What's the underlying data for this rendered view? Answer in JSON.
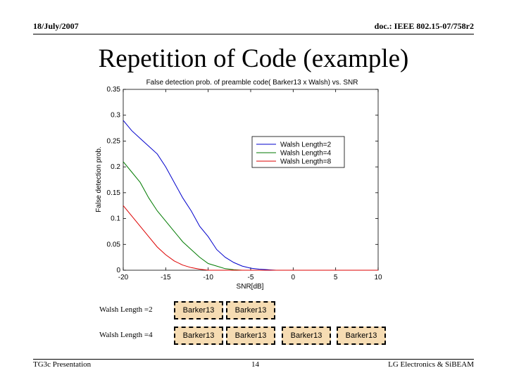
{
  "header": {
    "date": "18/July/2007",
    "doc": "doc.: IEEE 802.15-07/758r2"
  },
  "slide_title": "Repetition of Code (example)",
  "chart_data": {
    "type": "line",
    "title": "False detection prob. of preamble code( Barker13 x Walsh) vs. SNR",
    "xlabel": "SNR[dB]",
    "ylabel": "False detection prob.",
    "xlim": [
      -20,
      10
    ],
    "ylim": [
      0,
      0.35
    ],
    "xticks": [
      -20,
      -15,
      -10,
      -5,
      0,
      5,
      10
    ],
    "yticks": [
      0,
      0.05,
      0.1,
      0.15,
      0.2,
      0.25,
      0.3,
      0.35
    ],
    "grid": false,
    "legend_position": "upper-right",
    "series": [
      {
        "name": "Walsh Length=2",
        "color": "#0000cc",
        "x": [
          -20,
          -19,
          -18,
          -17,
          -16,
          -15,
          -14,
          -13,
          -12,
          -11,
          -10,
          -9,
          -8,
          -7,
          -6,
          -5,
          -4,
          -3,
          -2,
          0,
          5,
          10
        ],
        "y": [
          0.29,
          0.27,
          0.255,
          0.24,
          0.225,
          0.2,
          0.17,
          0.14,
          0.115,
          0.085,
          0.065,
          0.04,
          0.025,
          0.015,
          0.008,
          0.004,
          0.002,
          0.001,
          0.0,
          0.0,
          0.0,
          0.0
        ]
      },
      {
        "name": "Walsh Length=4",
        "color": "#007a00",
        "x": [
          -20,
          -19,
          -18,
          -17,
          -16,
          -15,
          -14,
          -13,
          -12,
          -11,
          -10,
          -9,
          -8,
          -7,
          -6,
          -5,
          0,
          5,
          10
        ],
        "y": [
          0.21,
          0.19,
          0.17,
          0.14,
          0.115,
          0.095,
          0.075,
          0.055,
          0.04,
          0.025,
          0.013,
          0.008,
          0.003,
          0.001,
          0.0,
          0.0,
          0.0,
          0.0,
          0.0
        ]
      },
      {
        "name": "Walsh Length=8",
        "color": "#dd0000",
        "x": [
          -20,
          -19,
          -18,
          -17,
          -16,
          -15,
          -14,
          -13,
          -12,
          -11,
          -10,
          -9,
          0,
          5,
          10
        ],
        "y": [
          0.125,
          0.105,
          0.085,
          0.065,
          0.045,
          0.03,
          0.018,
          0.01,
          0.005,
          0.002,
          0.0,
          0.0,
          0.0,
          0.0,
          0.0
        ]
      }
    ]
  },
  "code_rows": [
    {
      "label": "Walsh Length =2",
      "boxes": [
        "Barker13",
        "Barker13"
      ]
    },
    {
      "label": "Walsh Length =4",
      "boxes": [
        "Barker13",
        "Barker13",
        "Barker13",
        "Barker13"
      ]
    }
  ],
  "box_color": "#f6dcb3",
  "footer": {
    "left": "TG3c Presentation",
    "center": "14",
    "right": "LG Electronics & SiBEAM"
  }
}
